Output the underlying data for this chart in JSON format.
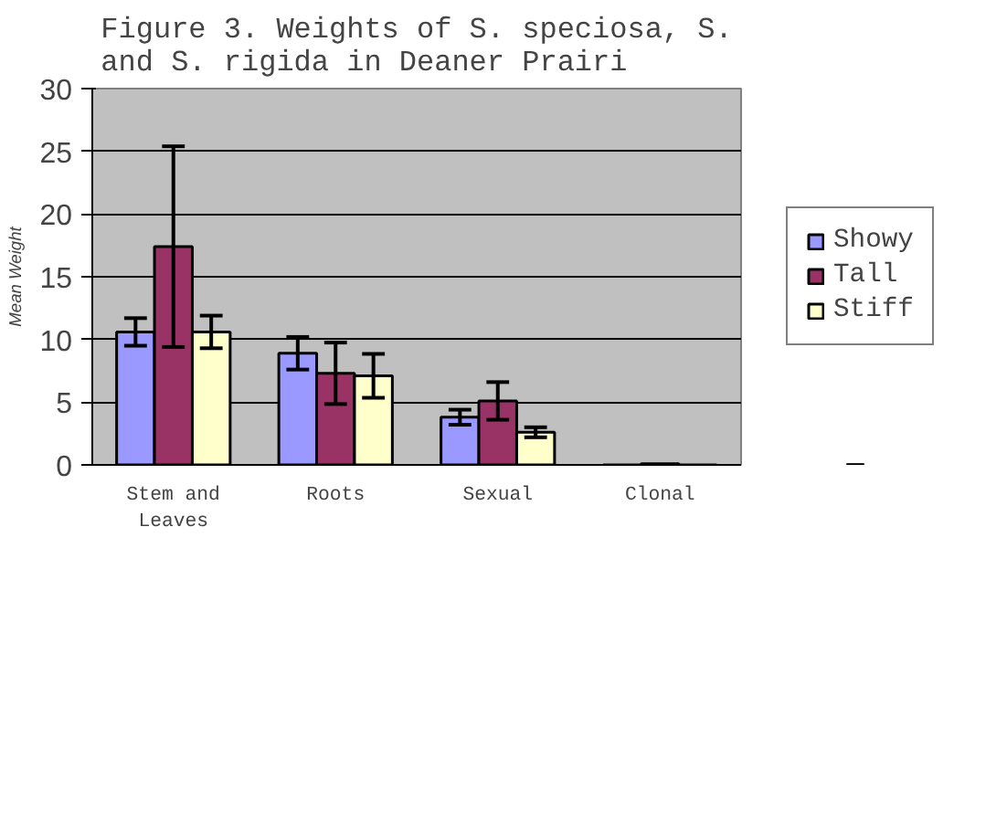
{
  "chart_data": {
    "type": "bar",
    "title": "Figure 3. Weights of S. speciosa, S. and S. rigida in Deaner Prairi",
    "ylabel": "Mean Weight",
    "categories": [
      "Stem and Leaves",
      "Roots",
      "Sexual",
      "Clonal"
    ],
    "series": [
      {
        "name": "Showy",
        "color": "#9999ff",
        "values": [
          10.6,
          8.9,
          3.8,
          null
        ],
        "errors": [
          1.1,
          1.3,
          0.6,
          null
        ]
      },
      {
        "name": "Tall",
        "color": "#993366",
        "values": [
          17.4,
          7.3,
          5.1,
          0.1
        ],
        "errors": [
          8,
          2.45,
          1.5,
          null
        ]
      },
      {
        "name": "Stiff",
        "color": "#ffffcc",
        "values": [
          10.6,
          7.1,
          2.6,
          null
        ],
        "errors": [
          1.3,
          1.75,
          0.4,
          null
        ]
      }
    ],
    "ylim": [
      0,
      30
    ],
    "yticks": [
      0,
      5,
      10,
      15,
      20,
      25,
      30
    ],
    "grid": "y",
    "legend": "right"
  }
}
